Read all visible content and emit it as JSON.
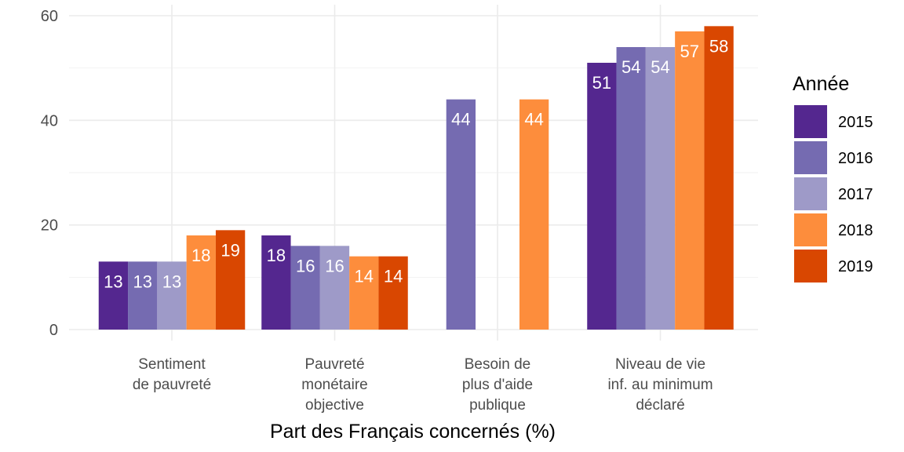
{
  "chart_data": {
    "type": "bar",
    "categories": [
      [
        "Sentiment",
        "de pauvreté"
      ],
      [
        "Pauvreté",
        "monétaire",
        "objective"
      ],
      [
        "Besoin de",
        "plus d'aide",
        "publique"
      ],
      [
        "Niveau de vie",
        "inf. au minimum",
        "déclaré"
      ]
    ],
    "series": [
      {
        "name": "2015",
        "color": "#54278f",
        "values": [
          13,
          18,
          null,
          51
        ]
      },
      {
        "name": "2016",
        "color": "#756bb1",
        "values": [
          13,
          16,
          44,
          54
        ]
      },
      {
        "name": "2017",
        "color": "#9e9ac8",
        "values": [
          13,
          16,
          null,
          54
        ]
      },
      {
        "name": "2018",
        "color": "#fd8d3c",
        "values": [
          18,
          14,
          44,
          57
        ]
      },
      {
        "name": "2019",
        "color": "#d94701",
        "values": [
          19,
          14,
          null,
          58
        ]
      }
    ],
    "title": "",
    "xlabel": "Part des Français concernés (%)",
    "ylabel": "",
    "ylim": [
      0,
      60
    ],
    "yticks": [
      "0",
      "20",
      "40",
      "60"
    ],
    "grid": true,
    "legend": {
      "title": "Année",
      "position": "right"
    }
  }
}
